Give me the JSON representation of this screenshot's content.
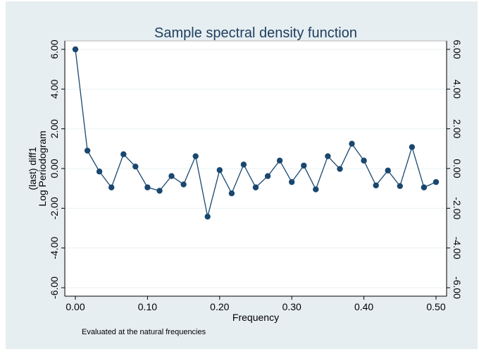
{
  "chart_data": {
    "type": "line",
    "title": "Sample spectral density function",
    "xlabel": "Frequency",
    "ylabel_lines": [
      "(last) diff1",
      "Log Periodogram"
    ],
    "note": "Evaluated at the natural frequencies",
    "xlim": [
      0,
      0.5
    ],
    "ylim": [
      -6,
      6
    ],
    "x_ticks": [
      0,
      0.1,
      0.2,
      0.3,
      0.4,
      0.5
    ],
    "x_tick_labels": [
      "0.00",
      "0.10",
      "0.20",
      "0.30",
      "0.40",
      "0.50"
    ],
    "y_ticks": [
      6,
      4,
      2,
      0,
      -2,
      -4,
      -6
    ],
    "y_tick_labels": [
      "6.00",
      "4.00",
      "2.00",
      "0.00",
      "-2.00",
      "-4.00",
      "-6.00"
    ],
    "grid": true,
    "legend": "none",
    "marker": "filled-circle",
    "colors": {
      "outer_background": "#e6eef2",
      "plot_background": "#ffffff",
      "series": "#1a476f",
      "grid": "#eaf2f3",
      "title": "#1e3d5c",
      "frame": "#b8b8b8"
    },
    "series": [
      {
        "x": [
          0,
          0.0167,
          0.0333,
          0.05,
          0.0667,
          0.0833,
          0.1,
          0.1167,
          0.1333,
          0.15,
          0.1667,
          0.1833,
          0.2,
          0.2167,
          0.2333,
          0.25,
          0.2667,
          0.2833,
          0.3,
          0.3167,
          0.3333,
          0.35,
          0.3667,
          0.3833,
          0.4,
          0.4167,
          0.4333,
          0.45,
          0.4667,
          0.4833,
          0.5
        ],
        "values": [
          6.0,
          0.9,
          -0.15,
          -0.95,
          0.72,
          0.1,
          -0.95,
          -1.12,
          -0.38,
          -0.8,
          0.62,
          -2.42,
          -0.08,
          -1.25,
          0.2,
          -0.95,
          -0.38,
          0.4,
          -0.68,
          0.15,
          -1.05,
          0.62,
          -0.02,
          1.25,
          0.4,
          -0.85,
          -0.1,
          -0.88,
          1.08,
          -0.95,
          -0.68
        ]
      }
    ]
  }
}
